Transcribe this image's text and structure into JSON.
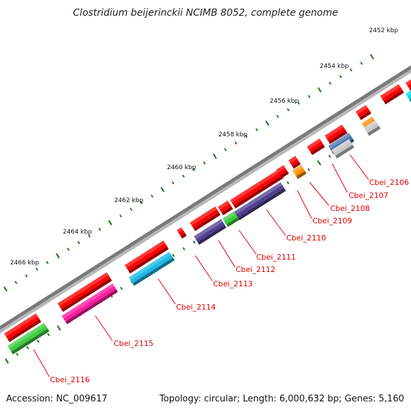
{
  "title": "Clostridium beijerinckii NCIMB 8052, complete genome",
  "footer": {
    "accession": "Accession: NC_009617",
    "topology": "Topology: circular; Length: 6,000,632 bp; Genes: 5,160"
  },
  "colors": {
    "backbone": "#7a7a7a",
    "tick": "#1e7a1e",
    "label": "#e00000"
  },
  "scale": {
    "labels": [
      "2452 kbp",
      "2454 kbp",
      "2456 kbp",
      "2458 kbp",
      "2460 kbp",
      "2462 kbp",
      "2464 kbp",
      "2466 kbp"
    ]
  },
  "genes": [
    {
      "label": "Cbei_2106",
      "color": "#00d8e8"
    },
    {
      "label": "Cbei_2107",
      "color": "#c8c8c8"
    },
    {
      "label": "Cbei_2108",
      "color": "#ff9000"
    },
    {
      "label": "Cbei_2109",
      "color": "#4a78b0"
    },
    {
      "label": "Cbei_2110",
      "color": "#ff9000"
    },
    {
      "label": "Cbei_2111",
      "color": "#504090"
    },
    {
      "label": "Cbei_2112",
      "color": "#40cc40"
    },
    {
      "label": "Cbei_2113",
      "color": "#504090"
    },
    {
      "label": "Cbei_2114",
      "color": "#1cb8e8"
    },
    {
      "label": "Cbei_2115",
      "color": "#ff1ca0"
    },
    {
      "label": "Cbei_2116",
      "color": "#40cc40"
    }
  ],
  "forward_genes": [
    {
      "color": "#ff0000"
    },
    {
      "color": "#ff0000"
    },
    {
      "color": "#ff0000"
    },
    {
      "color": "#ff0000"
    },
    {
      "color": "#ff0000"
    },
    {
      "color": "#ff0000"
    },
    {
      "color": "#ff0000"
    },
    {
      "color": "#ff0000"
    },
    {
      "color": "#ff0000"
    },
    {
      "color": "#ff0000"
    },
    {
      "color": "#ff0000"
    },
    {
      "color": "#ff0000"
    },
    {
      "color": "#ff0000"
    },
    {
      "color": "#ff0000"
    }
  ]
}
